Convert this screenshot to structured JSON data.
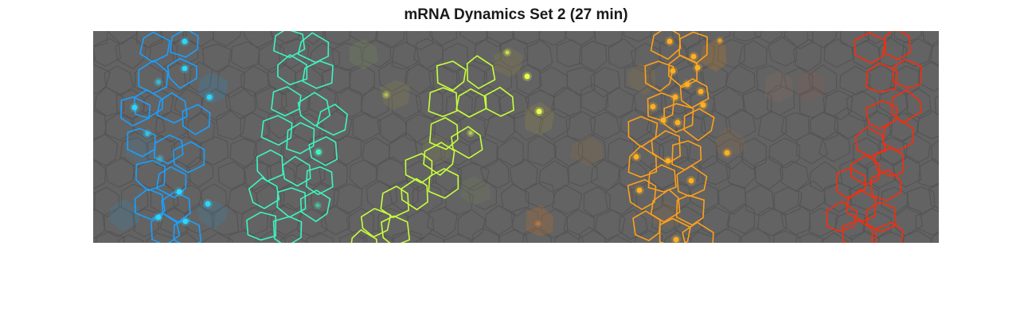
{
  "figure": {
    "title": "mRNA Dynamics Set 2 (27 min)"
  },
  "image": {
    "background_color": "#636363",
    "cell_edge_color": "#555555",
    "stripe_colors": [
      "#1aa0ff",
      "#3cf5c0",
      "#c8ff3c",
      "#ffa019",
      "#ff2a0a"
    ],
    "spot_colors": [
      "#2ad8ff",
      "#3cf5c0",
      "#e8ff4a",
      "#ffb020"
    ]
  }
}
